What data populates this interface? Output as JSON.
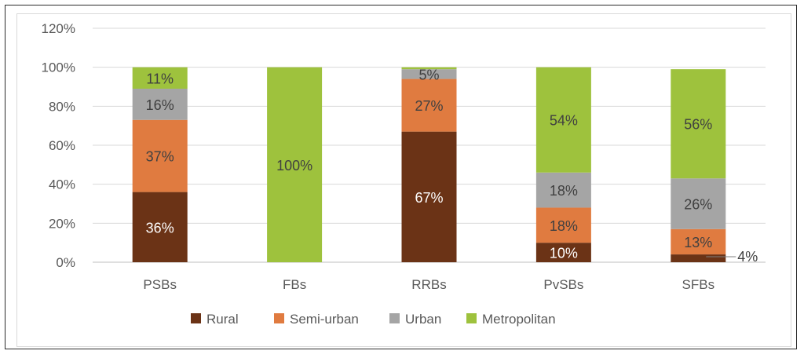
{
  "chart_data": {
    "type": "bar",
    "stacked": true,
    "categories": [
      "PSBs",
      "FBs",
      "RRBs",
      "PvSBs",
      "SFBs"
    ],
    "series": [
      {
        "name": "Rural",
        "color": "#6b3316",
        "values": [
          36,
          0,
          67,
          10,
          4
        ],
        "labels": [
          "36%",
          "",
          "67%",
          "10%",
          "4%"
        ],
        "label_color": "#ffffff"
      },
      {
        "name": "Semi-urban",
        "color": "#e07b40",
        "values": [
          37,
          0,
          27,
          18,
          13
        ],
        "labels": [
          "37%",
          "",
          "27%",
          "18%",
          "13%"
        ],
        "label_color": "#404040"
      },
      {
        "name": "Urban",
        "color": "#a5a5a5",
        "values": [
          16,
          0,
          5,
          18,
          26
        ],
        "labels": [
          "16%",
          "",
          "5%",
          "18%",
          "26%"
        ],
        "label_color": "#404040"
      },
      {
        "name": "Metropolitan",
        "color": "#9ec23d",
        "values": [
          11,
          100,
          1,
          54,
          56
        ],
        "labels": [
          "11%",
          "100%",
          "",
          "54%",
          "56%"
        ],
        "label_color": "#404040"
      }
    ],
    "ylim": [
      0,
      120
    ],
    "yticks": [
      "0%",
      "20%",
      "40%",
      "60%",
      "80%",
      "100%",
      "120%"
    ],
    "ytick_values": [
      0,
      20,
      40,
      60,
      80,
      100,
      120
    ],
    "grid": true,
    "legend_position": "bottom",
    "callout": {
      "category": "SFBs",
      "series": "Rural",
      "label": "4%"
    }
  }
}
